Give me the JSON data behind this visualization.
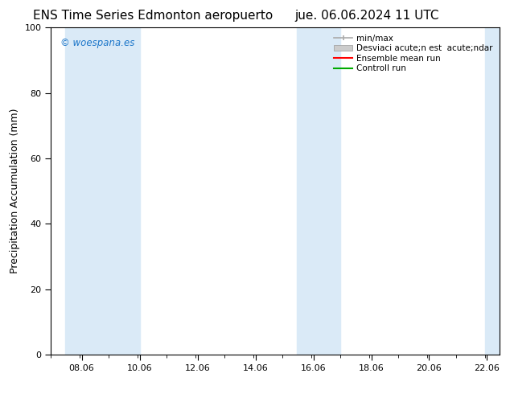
{
  "title_left": "ENS Time Series Edmonton aeropuerto",
  "title_right": "jue. 06.06.2024 11 UTC",
  "ylabel": "Precipitation Accumulation (mm)",
  "ylim": [
    0,
    100
  ],
  "yticks": [
    0,
    20,
    40,
    60,
    80,
    100
  ],
  "xmin": 7.0,
  "xmax": 22.5,
  "xtick_labels": [
    "08.06",
    "10.06",
    "12.06",
    "14.06",
    "16.06",
    "18.06",
    "20.06",
    "22.06"
  ],
  "xtick_positions": [
    8.06,
    10.06,
    12.06,
    14.06,
    16.06,
    18.06,
    20.06,
    22.06
  ],
  "band1_xmin": 7.5,
  "band1_xmax": 10.06,
  "band2_xmin": 15.5,
  "band2_xmax": 17.0,
  "band3_xmin": 22.0,
  "band3_xmax": 22.5,
  "band_color": "#daeaf7",
  "background_color": "#ffffff",
  "watermark_text": "© woespana.es",
  "watermark_color": "#1a75c9",
  "legend_label_1": "min/max",
  "legend_label_2": "Desviaci acute;n est  acute;ndar",
  "legend_label_3": "Ensemble mean run",
  "legend_label_4": "Controll run",
  "legend_color_1": "#aaaaaa",
  "legend_color_2": "#cccccc",
  "legend_color_3": "#ff0000",
  "legend_color_4": "#00aa00",
  "title_fontsize": 11,
  "tick_fontsize": 8,
  "ylabel_fontsize": 9,
  "legend_fontsize": 7.5
}
